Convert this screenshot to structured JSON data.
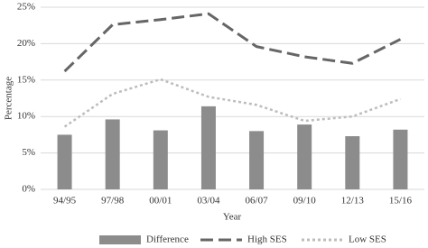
{
  "chart_data": {
    "type": "bar",
    "x_label": "Year",
    "y_label": "Percentage",
    "categories": [
      "94/95",
      "97/98",
      "00/01",
      "03/04",
      "06/07",
      "09/10",
      "12/13",
      "15/16"
    ],
    "series": [
      {
        "name": "Difference",
        "type": "bar",
        "color": "#8c8c8c",
        "values": [
          7.5,
          9.6,
          8.1,
          11.4,
          8.0,
          8.9,
          7.3,
          8.2
        ]
      },
      {
        "name": "High SES",
        "type": "line",
        "style": "dashed",
        "color": "#666666",
        "values": [
          16.2,
          22.6,
          23.3,
          24.1,
          19.6,
          18.2,
          17.3,
          20.6
        ]
      },
      {
        "name": "Low SES",
        "type": "line",
        "style": "dotted",
        "color": "#bdbdbd",
        "values": [
          8.6,
          13.1,
          15.1,
          12.7,
          11.6,
          9.4,
          10.0,
          12.4
        ]
      }
    ],
    "ylim": [
      0,
      25
    ],
    "yticks": [
      {
        "value": 0,
        "label": "0%"
      },
      {
        "value": 5,
        "label": "5%"
      },
      {
        "value": 10,
        "label": "10%"
      },
      {
        "value": 15,
        "label": "15%"
      },
      {
        "value": 20,
        "label": "20%"
      },
      {
        "value": 25,
        "label": "25%"
      }
    ],
    "grid": true,
    "legend": "bottom"
  }
}
